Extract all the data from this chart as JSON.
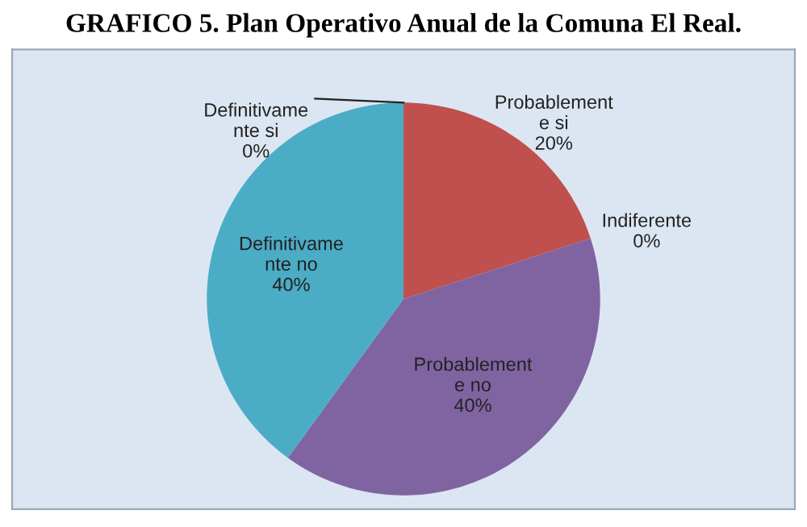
{
  "chart_data": {
    "type": "pie",
    "title": "GRAFICO 5. Plan Operativo Anual de la Comuna El Real.",
    "categories": [
      "Definitivamente si",
      "Probablemente si",
      "Indiferente",
      "Probablemente no",
      "Definitivamente no"
    ],
    "values": [
      0,
      20,
      0,
      40,
      40
    ],
    "value_labels": [
      "0%",
      "20%",
      "0%",
      "40%",
      "40%"
    ],
    "colors": [
      "#4f81bd",
      "#c0504d",
      "#9bbb59",
      "#8064a2",
      "#4bacc6"
    ],
    "legend": false
  }
}
